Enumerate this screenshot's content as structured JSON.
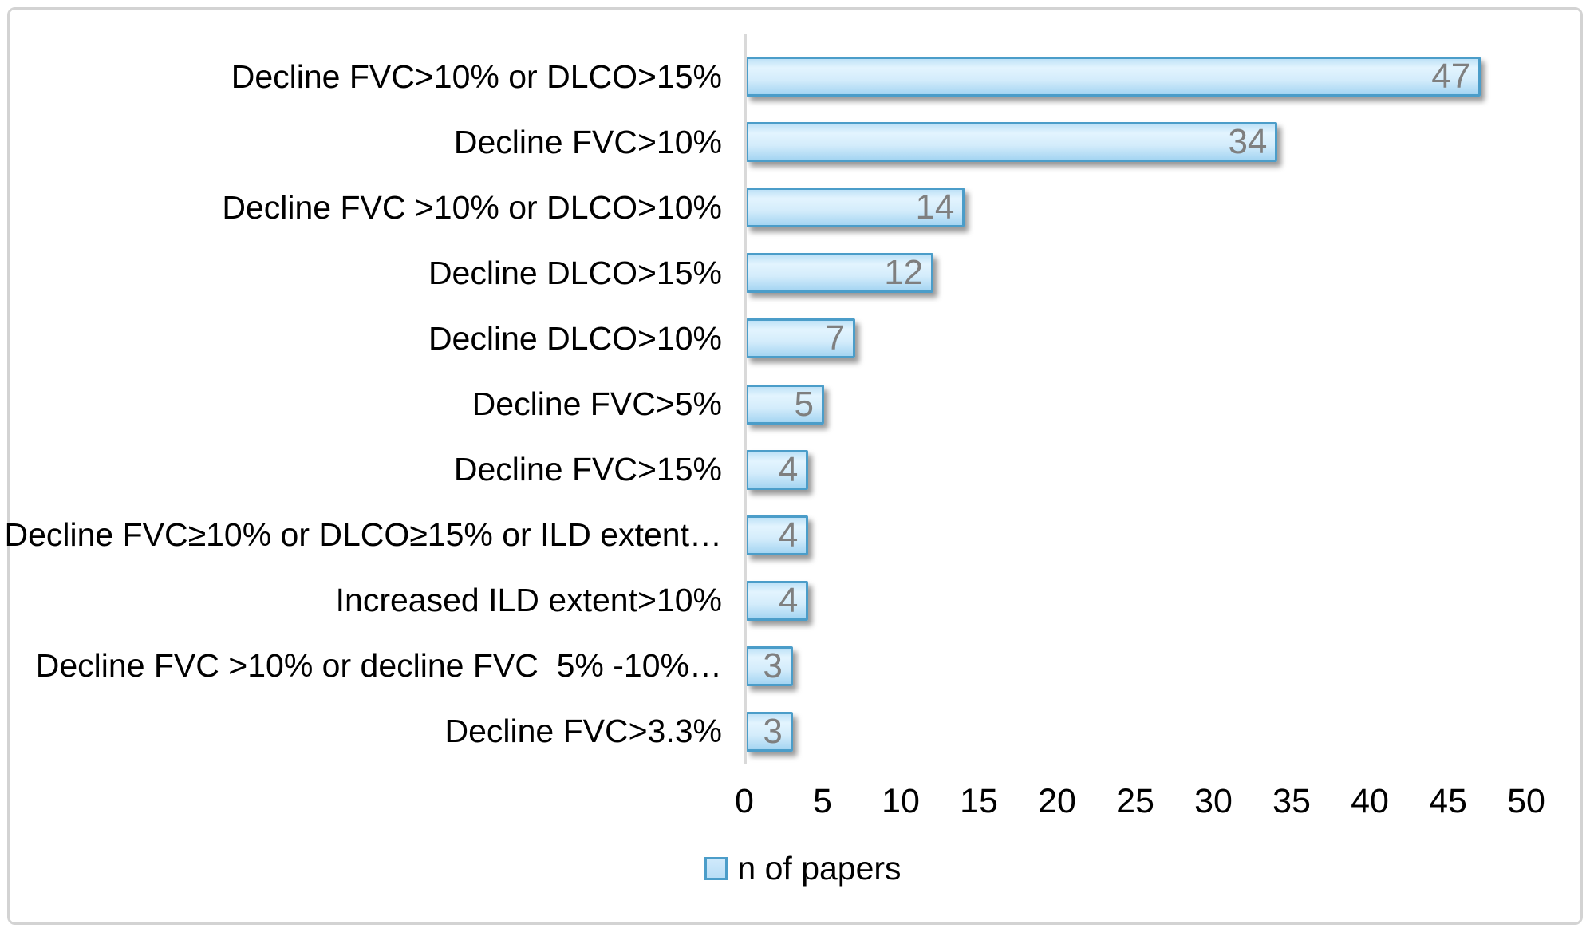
{
  "chart_data": {
    "type": "bar",
    "orientation": "horizontal",
    "categories": [
      "Decline FVC>10% or DLCO>15%",
      "Decline FVC>10%",
      "Decline FVC >10% or DLCO>10%",
      "Decline DLCO>15%",
      "Decline DLCO>10%",
      "Decline FVC>5%",
      "Decline FVC>15%",
      "Decline FVC≥10% or DLCO≥15% or ILD extent…",
      "Increased ILD extent>10%",
      "Decline FVC >10% or decline FVC  5% -10%…",
      "Decline FVC>3.3%"
    ],
    "values": [
      47,
      34,
      14,
      12,
      7,
      5,
      4,
      4,
      4,
      3,
      3
    ],
    "series_name": "n of papers",
    "title": "",
    "xlabel": "",
    "ylabel": "",
    "xlim": [
      0,
      50
    ],
    "x_ticks": [
      0,
      5,
      10,
      15,
      20,
      25,
      30,
      35,
      40,
      45,
      50
    ],
    "grid": false,
    "data_labels": "inside-end",
    "legend": {
      "label": "n of papers",
      "position": "bottom"
    },
    "colors": {
      "bar_border": "#4b9dc9",
      "bar_gradient": [
        "#bfe2f7",
        "#e3f4fe",
        "#d3ecfb",
        "#a5d5f2"
      ],
      "data_label": "#7f7f7f",
      "axis_line": "#d9d9d9",
      "tick_label": "#000000",
      "category_label": "#000000",
      "figure_border": "#d3d3d3",
      "background": "#ffffff"
    }
  }
}
